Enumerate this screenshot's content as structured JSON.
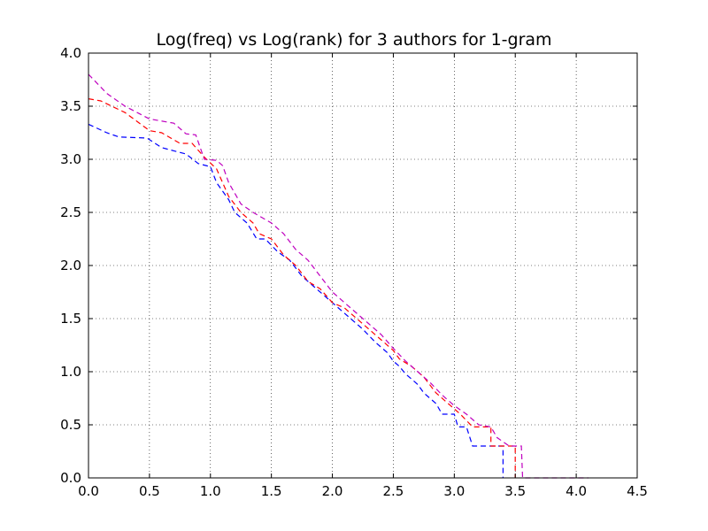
{
  "chart_data": {
    "type": "line",
    "title": "Log(freq) vs Log(rank) for 3 authors for 1-gram",
    "xlabel": "",
    "ylabel": "",
    "xlim": [
      0.0,
      4.5
    ],
    "ylim": [
      0.0,
      4.0
    ],
    "x_ticks": [
      "0.0",
      "0.5",
      "1.0",
      "1.5",
      "2.0",
      "2.5",
      "3.0",
      "3.5",
      "4.0",
      "4.5"
    ],
    "y_ticks": [
      "0.0",
      "0.5",
      "1.0",
      "1.5",
      "2.0",
      "2.5",
      "3.0",
      "3.5",
      "4.0"
    ],
    "grid": true,
    "legend": "none",
    "series": [
      {
        "color": "#0000ff",
        "style": "dashed",
        "points": [
          [
            0.0,
            3.33
          ],
          [
            0.15,
            3.25
          ],
          [
            0.25,
            3.21
          ],
          [
            0.48,
            3.2
          ],
          [
            0.6,
            3.11
          ],
          [
            0.7,
            3.08
          ],
          [
            0.8,
            3.05
          ],
          [
            0.9,
            2.96
          ],
          [
            1.0,
            2.93
          ],
          [
            1.05,
            2.78
          ],
          [
            1.15,
            2.62
          ],
          [
            1.2,
            2.5
          ],
          [
            1.3,
            2.4
          ],
          [
            1.38,
            2.25
          ],
          [
            1.45,
            2.25
          ],
          [
            1.55,
            2.13
          ],
          [
            1.65,
            2.05
          ],
          [
            1.75,
            1.9
          ],
          [
            1.85,
            1.8
          ],
          [
            1.95,
            1.7
          ],
          [
            2.05,
            1.6
          ],
          [
            2.15,
            1.5
          ],
          [
            2.25,
            1.4
          ],
          [
            2.35,
            1.28
          ],
          [
            2.45,
            1.18
          ],
          [
            2.5,
            1.1
          ],
          [
            2.55,
            1.05
          ],
          [
            2.6,
            0.98
          ],
          [
            2.7,
            0.88
          ],
          [
            2.75,
            0.8
          ],
          [
            2.85,
            0.7
          ],
          [
            2.9,
            0.6
          ],
          [
            3.0,
            0.6
          ],
          [
            3.03,
            0.48
          ],
          [
            3.1,
            0.48
          ],
          [
            3.15,
            0.3
          ],
          [
            3.25,
            0.3
          ],
          [
            3.4,
            0.3
          ],
          [
            3.4,
            0.0
          ]
        ]
      },
      {
        "color": "#ff0000",
        "style": "dashed",
        "points": [
          [
            0.0,
            3.57
          ],
          [
            0.1,
            3.55
          ],
          [
            0.3,
            3.44
          ],
          [
            0.5,
            3.27
          ],
          [
            0.6,
            3.25
          ],
          [
            0.75,
            3.15
          ],
          [
            0.85,
            3.15
          ],
          [
            0.95,
            3.02
          ],
          [
            1.05,
            2.91
          ],
          [
            1.15,
            2.65
          ],
          [
            1.25,
            2.5
          ],
          [
            1.35,
            2.4
          ],
          [
            1.4,
            2.3
          ],
          [
            1.5,
            2.25
          ],
          [
            1.6,
            2.1
          ],
          [
            1.7,
            2.0
          ],
          [
            1.8,
            1.85
          ],
          [
            1.9,
            1.78
          ],
          [
            2.0,
            1.65
          ],
          [
            2.1,
            1.6
          ],
          [
            2.2,
            1.5
          ],
          [
            2.3,
            1.4
          ],
          [
            2.4,
            1.3
          ],
          [
            2.5,
            1.2
          ],
          [
            2.55,
            1.12
          ],
          [
            2.65,
            1.05
          ],
          [
            2.75,
            0.95
          ],
          [
            2.85,
            0.8
          ],
          [
            2.95,
            0.7
          ],
          [
            3.05,
            0.6
          ],
          [
            3.15,
            0.48
          ],
          [
            3.3,
            0.48
          ],
          [
            3.3,
            0.3
          ],
          [
            3.5,
            0.3
          ],
          [
            3.5,
            0.0
          ]
        ]
      },
      {
        "color": "#bf00bf",
        "style": "dashed",
        "points": [
          [
            0.0,
            3.8
          ],
          [
            0.15,
            3.62
          ],
          [
            0.3,
            3.5
          ],
          [
            0.5,
            3.38
          ],
          [
            0.7,
            3.34
          ],
          [
            0.8,
            3.24
          ],
          [
            0.88,
            3.23
          ],
          [
            0.95,
            3.0
          ],
          [
            1.05,
            2.99
          ],
          [
            1.1,
            2.94
          ],
          [
            1.15,
            2.78
          ],
          [
            1.25,
            2.58
          ],
          [
            1.35,
            2.5
          ],
          [
            1.5,
            2.4
          ],
          [
            1.6,
            2.3
          ],
          [
            1.7,
            2.15
          ],
          [
            1.8,
            2.05
          ],
          [
            1.9,
            1.9
          ],
          [
            2.0,
            1.75
          ],
          [
            2.1,
            1.65
          ],
          [
            2.2,
            1.55
          ],
          [
            2.3,
            1.45
          ],
          [
            2.4,
            1.35
          ],
          [
            2.5,
            1.22
          ],
          [
            2.6,
            1.1
          ],
          [
            2.7,
            1.0
          ],
          [
            2.8,
            0.9
          ],
          [
            2.9,
            0.78
          ],
          [
            3.0,
            0.68
          ],
          [
            3.1,
            0.6
          ],
          [
            3.2,
            0.5
          ],
          [
            3.3,
            0.48
          ],
          [
            3.35,
            0.38
          ],
          [
            3.45,
            0.3
          ],
          [
            3.55,
            0.3
          ],
          [
            3.56,
            0.0
          ],
          [
            4.1,
            0.0
          ]
        ]
      }
    ]
  }
}
